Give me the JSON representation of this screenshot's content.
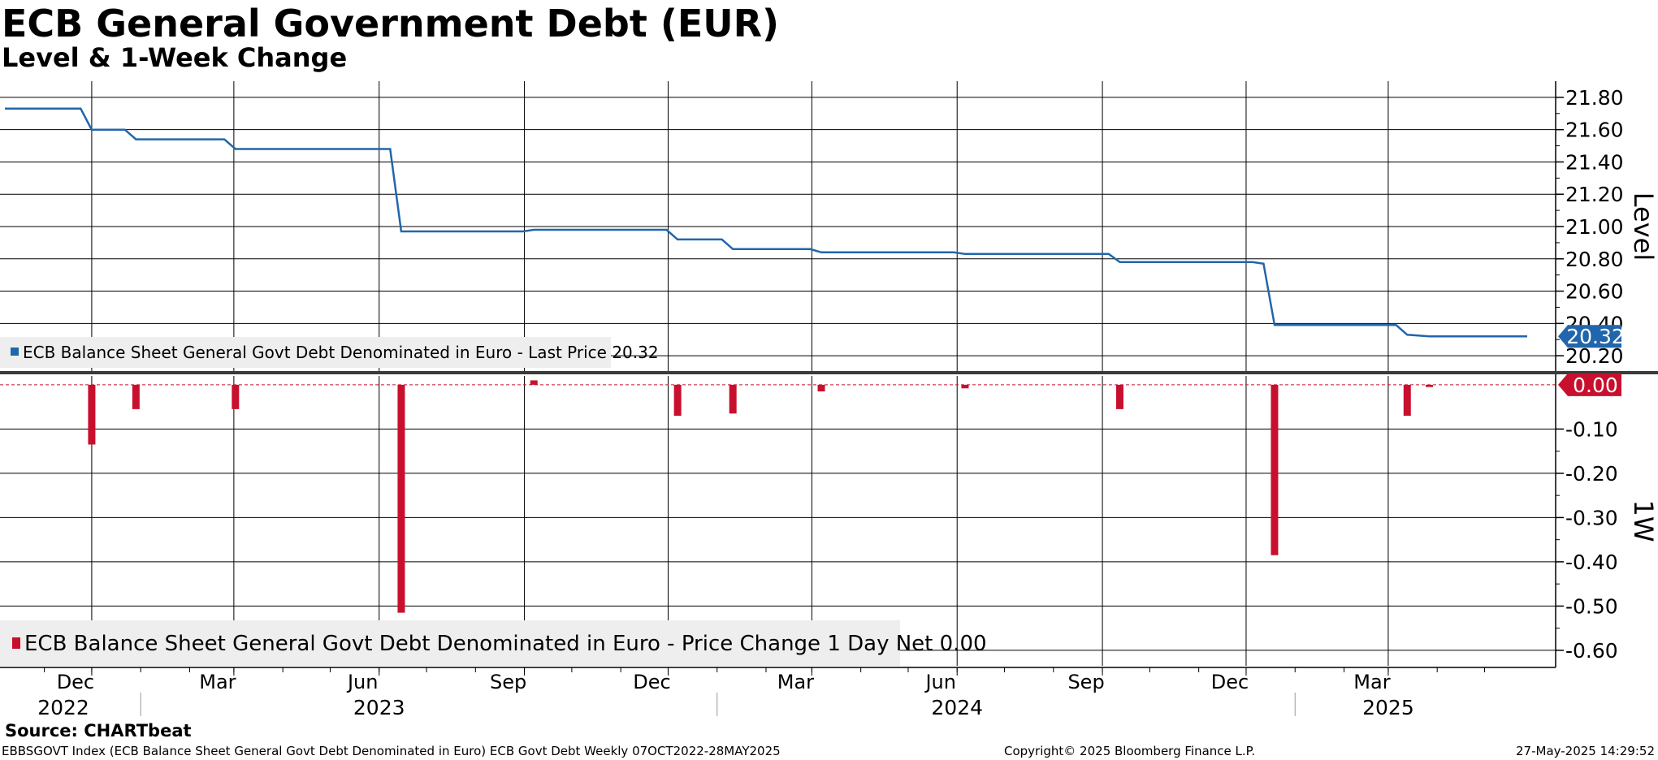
{
  "chart_data": {
    "type": "line",
    "title": "ECB General Government Debt (EUR)",
    "subtitle": "Level & 1-Week Change",
    "x_range": [
      "2022-10-07",
      "2025-05-28"
    ],
    "x_months": [
      {
        "label": "Dec",
        "date": "2022-12-01"
      },
      {
        "label": "Mar",
        "date": "2023-03-01"
      },
      {
        "label": "Jun",
        "date": "2023-06-01"
      },
      {
        "label": "Sep",
        "date": "2023-09-01"
      },
      {
        "label": "Dec",
        "date": "2023-12-01"
      },
      {
        "label": "Mar",
        "date": "2024-03-01"
      },
      {
        "label": "Jun",
        "date": "2024-06-01"
      },
      {
        "label": "Sep",
        "date": "2024-09-01"
      },
      {
        "label": "Dec",
        "date": "2024-12-01"
      },
      {
        "label": "Mar",
        "date": "2025-03-01"
      }
    ],
    "x_years": [
      {
        "label": "2022",
        "date": "2022-11-01"
      },
      {
        "label": "2023",
        "date": "2023-06-01"
      },
      {
        "label": "2024",
        "date": "2024-06-01"
      },
      {
        "label": "2025",
        "date": "2025-03-01"
      }
    ],
    "year_boundaries": [
      "2023-01-01",
      "2024-01-01",
      "2025-01-01"
    ],
    "panels": [
      {
        "id": "level",
        "ylabel": "Level",
        "ylim": [
          20.1,
          21.9
        ],
        "yticks": [
          20.2,
          20.4,
          20.6,
          20.8,
          21.0,
          21.2,
          21.4,
          21.6,
          21.8
        ],
        "grid": true,
        "legend": "ECB Balance Sheet General Govt Debt Denominated in Euro - Last Price 20.32",
        "last_value_label": "20.32",
        "color": "#2166ac",
        "series": {
          "name": "ECB Balance Sheet General Govt Debt Denominated in Euro",
          "points": [
            [
              "2022-10-07",
              21.73
            ],
            [
              "2022-11-24",
              21.73
            ],
            [
              "2022-12-01",
              21.6
            ],
            [
              "2022-12-22",
              21.6
            ],
            [
              "2022-12-29",
              21.54
            ],
            [
              "2023-02-23",
              21.54
            ],
            [
              "2023-03-02",
              21.48
            ],
            [
              "2023-06-08",
              21.48
            ],
            [
              "2023-06-15",
              20.97
            ],
            [
              "2023-08-31",
              20.97
            ],
            [
              "2023-09-07",
              20.98
            ],
            [
              "2023-11-23",
              20.98
            ],
            [
              "2023-11-30",
              20.98
            ],
            [
              "2023-12-07",
              20.92
            ],
            [
              "2024-01-04",
              20.92
            ],
            [
              "2024-01-11",
              20.86
            ],
            [
              "2024-02-29",
              20.86
            ],
            [
              "2024-03-07",
              20.84
            ],
            [
              "2024-05-30",
              20.84
            ],
            [
              "2024-06-06",
              20.83
            ],
            [
              "2024-09-05",
              20.83
            ],
            [
              "2024-09-12",
              20.78
            ],
            [
              "2024-12-05",
              20.78
            ],
            [
              "2024-12-12",
              20.77
            ],
            [
              "2024-12-19",
              20.39
            ],
            [
              "2025-03-06",
              20.39
            ],
            [
              "2025-03-13",
              20.33
            ],
            [
              "2025-03-27",
              20.32
            ],
            [
              "2025-05-28",
              20.32
            ]
          ]
        }
      },
      {
        "id": "change",
        "ylabel": "1W",
        "ylim": [
          -0.635,
          0.02
        ],
        "yticks": [
          -0.1,
          -0.2,
          -0.3,
          -0.4,
          -0.5,
          -0.6
        ],
        "grid": true,
        "legend": "ECB Balance Sheet General Govt Debt Denominated in Euro - Price Change 1 Day Net 0.00",
        "last_value_label": "0.00",
        "color": "#c8102e",
        "series": {
          "name": "ECB Balance Sheet General Govt Debt Denominated in Euro",
          "bars": [
            [
              "2022-12-01",
              -0.135
            ],
            [
              "2022-12-29",
              -0.055
            ],
            [
              "2023-03-02",
              -0.055
            ],
            [
              "2023-06-15",
              -0.515
            ],
            [
              "2023-09-07",
              0.01
            ],
            [
              "2023-12-07",
              -0.07
            ],
            [
              "2024-01-11",
              -0.065
            ],
            [
              "2024-03-07",
              -0.015
            ],
            [
              "2024-06-06",
              -0.008
            ],
            [
              "2024-09-12",
              -0.055
            ],
            [
              "2024-12-19",
              -0.385
            ],
            [
              "2025-03-13",
              -0.07
            ],
            [
              "2025-03-27",
              -0.005
            ]
          ]
        }
      }
    ]
  },
  "source": "Source: CHARTbeat",
  "footer": {
    "left": "EBBSGOVT Index (ECB Balance Sheet General Govt Debt Denominated in Euro) ECB Govt Debt  Weekly 07OCT2022-28MAY2025",
    "center": "Copyright© 2025 Bloomberg Finance L.P.",
    "right": "27-May-2025 14:29:52"
  },
  "colors": {
    "line": "#2166ac",
    "bar": "#c8102e",
    "grid": "#000000",
    "legend_bg": "#eeeeee",
    "separator": "#3a3a3a"
  }
}
